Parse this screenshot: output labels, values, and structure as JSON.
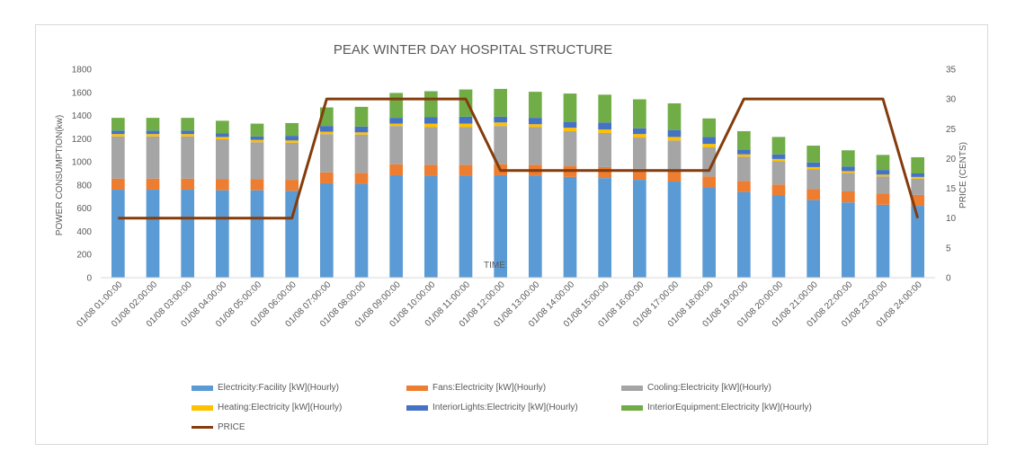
{
  "chart_data": {
    "type": "bar",
    "stacked": true,
    "title": "PEAK WINTER DAY HOSPITAL STRUCTURE",
    "xlabel": "TIME",
    "ylabel": "POWER CONSUMPTION(kw)",
    "y2label": "PRICE (CENTS)",
    "ylim": [
      0,
      1800
    ],
    "yticks": [
      0,
      200,
      400,
      600,
      800,
      1000,
      1200,
      1400,
      1600,
      1800
    ],
    "y2lim": [
      0,
      35
    ],
    "y2ticks": [
      0,
      5,
      10,
      15,
      20,
      25,
      30,
      35
    ],
    "grid": false,
    "legend_position": "bottom",
    "categories": [
      "01/08 01:00:00",
      "01/08 02:00:00",
      "01/08 03:00:00",
      "01/08 04:00:00",
      "01/08 05:00:00",
      "01/08 06:00:00",
      "01/08 07:00:00",
      "01/08 08:00:00",
      "01/08 09:00:00",
      "01/08 10:00:00",
      "01/08 11:00:00",
      "01/08 12:00:00",
      "01/08 13:00:00",
      "01/08 14:00:00",
      "01/08 15:00:00",
      "01/08 16:00:00",
      "01/08 17:00:00",
      "01/08 18:00:00",
      "01/08 19:00:00",
      "01/08 20:00:00",
      "01/08 21:00:00",
      "01/08 22:00:00",
      "01/08 23:00:00",
      "01/08 24:00:00"
    ],
    "series": [
      {
        "name": "Electricity:Facility [kW](Hourly)",
        "color": "#5b9bd5",
        "values": [
          760,
          760,
          760,
          755,
          755,
          750,
          815,
          810,
          885,
          880,
          880,
          885,
          880,
          870,
          860,
          845,
          830,
          780,
          740,
          710,
          670,
          650,
          630,
          620
        ]
      },
      {
        "name": "Fans:Electricity [kW](Hourly)",
        "color": "#ed7d31",
        "values": [
          95,
          95,
          95,
          95,
          95,
          95,
          95,
          95,
          95,
          95,
          95,
          95,
          95,
          95,
          95,
          95,
          95,
          95,
          95,
          95,
          95,
          95,
          95,
          95
        ]
      },
      {
        "name": "Cooling:Electricity [kW](Hourly)",
        "color": "#a5a5a5",
        "values": [
          365,
          365,
          365,
          345,
          320,
          320,
          330,
          330,
          330,
          325,
          325,
          330,
          325,
          300,
          295,
          270,
          260,
          250,
          210,
          200,
          170,
          160,
          150,
          140
        ]
      },
      {
        "name": "Heating:Electricity [kW](Hourly)",
        "color": "#ffc000",
        "values": [
          20,
          20,
          20,
          20,
          20,
          20,
          20,
          20,
          20,
          30,
          30,
          30,
          25,
          30,
          30,
          30,
          30,
          30,
          20,
          20,
          20,
          15,
          15,
          15
        ]
      },
      {
        "name": "InteriorLights:Electricity [kW](Hourly)",
        "color": "#4472c4",
        "values": [
          30,
          30,
          30,
          30,
          30,
          40,
          50,
          50,
          50,
          55,
          60,
          50,
          55,
          50,
          60,
          50,
          60,
          60,
          40,
          40,
          40,
          40,
          40,
          30
        ]
      },
      {
        "name": "InteriorEquipment:Electricity [kW](Hourly)",
        "color": "#70ad47",
        "values": [
          110,
          110,
          110,
          110,
          110,
          110,
          160,
          170,
          215,
          225,
          235,
          240,
          225,
          245,
          240,
          250,
          230,
          160,
          160,
          150,
          145,
          140,
          130,
          140
        ]
      },
      {
        "name": "PRICE",
        "color": "#843c0c",
        "type": "line",
        "axis": "secondary",
        "values": [
          10,
          10,
          10,
          10,
          10,
          10,
          30,
          30,
          30,
          30,
          30,
          18,
          18,
          18,
          18,
          18,
          18,
          18,
          30,
          30,
          30,
          30,
          30,
          10
        ]
      }
    ]
  }
}
